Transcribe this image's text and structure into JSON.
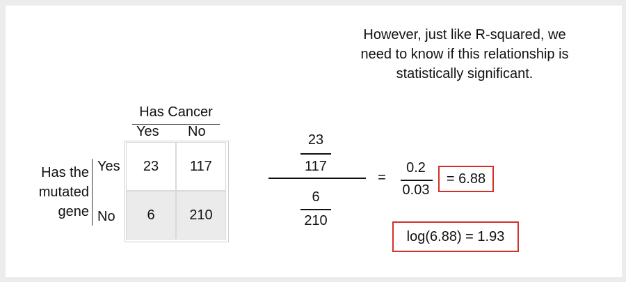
{
  "note": {
    "line1": "However, just like R-squared, we",
    "line2": "need to know if this relationship is",
    "line3": "statistically significant."
  },
  "table": {
    "col_group_label": "Has Cancer",
    "col_labels": [
      "Yes",
      "No"
    ],
    "row_group_label": [
      "Has the",
      "mutated",
      "gene"
    ],
    "row_labels": [
      "Yes",
      "No"
    ],
    "cells": [
      [
        "23",
        "117"
      ],
      [
        "6",
        "210"
      ]
    ]
  },
  "fraction": {
    "top_num": "23",
    "top_den": "117",
    "bottom_num": "6",
    "bottom_den": "210"
  },
  "result": {
    "equals": "=",
    "ratio_num": "0.2",
    "ratio_den": "0.03",
    "value": "= 6.88",
    "log": "log(6.88) = 1.93"
  },
  "colors": {
    "highlight_box": "#d2312b",
    "shaded_row": "#ebebeb"
  }
}
